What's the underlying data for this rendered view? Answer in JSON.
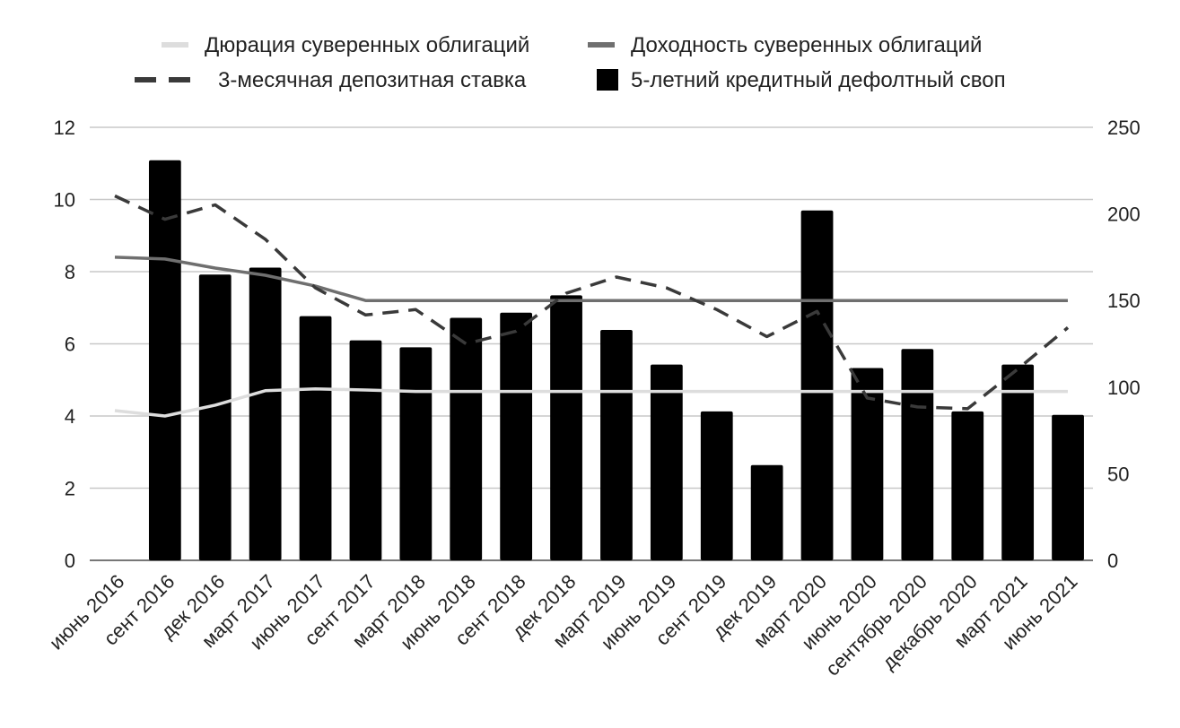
{
  "chart_data": {
    "type": "bar",
    "categories": [
      "июнь 2016",
      "сент 2016",
      "дек 2016",
      "март 2017",
      "июнь 2017",
      "сент 2017",
      "март 2018",
      "июнь 2018",
      "сент 2018",
      "дек 2018",
      "март 2019",
      "июнь 2019",
      "сент 2019",
      "дек 2019",
      "март 2020",
      "июнь 2020",
      "сентябрь 2020",
      "декабрь 2020",
      "март 2021",
      "июнь 2021"
    ],
    "left_axis": {
      "ticks": [
        "0",
        "2",
        "4",
        "6",
        "8",
        "10",
        "12"
      ],
      "ylim": [
        0,
        12
      ]
    },
    "right_axis": {
      "ticks": [
        "0",
        "50",
        "100",
        "150",
        "200",
        "250"
      ],
      "ylim": [
        0,
        250
      ]
    },
    "grid": true,
    "legend_position": "top",
    "series": [
      {
        "name": "Дюрация суверенных облигаций",
        "kind": "line",
        "axis": "left",
        "color": "#dddddd",
        "values": [
          4.15,
          4.0,
          4.3,
          4.7,
          4.75,
          4.72,
          4.68,
          4.68,
          4.68,
          4.68,
          4.68,
          4.68,
          4.68,
          4.68,
          4.68,
          4.68,
          4.68,
          4.68,
          4.68,
          4.68
        ]
      },
      {
        "name": "Доходность суверенных облигаций",
        "kind": "line",
        "axis": "left",
        "color": "#6f6f6f",
        "values": [
          8.4,
          8.35,
          8.1,
          7.9,
          7.6,
          7.2,
          7.2,
          7.2,
          7.2,
          7.2,
          7.2,
          7.2,
          7.2,
          7.2,
          7.2,
          7.2,
          7.2,
          7.2,
          7.2,
          7.2
        ]
      },
      {
        "name": "3-месячная депозитная ставка",
        "kind": "dashed-line",
        "axis": "left",
        "color": "#3a3a3a",
        "values": [
          10.1,
          9.45,
          9.85,
          8.9,
          7.55,
          6.8,
          6.95,
          6.0,
          6.35,
          7.4,
          7.85,
          7.55,
          6.95,
          6.2,
          6.9,
          4.5,
          4.25,
          4.2,
          5.3,
          6.45
        ]
      },
      {
        "name": "5-летний кредитный дефолтный своп",
        "kind": "bar",
        "axis": "right",
        "color": "#000000",
        "values": [
          null,
          231,
          165,
          169,
          141,
          127,
          123,
          140,
          143,
          153,
          133,
          113,
          86,
          55,
          202,
          111,
          122,
          86,
          113,
          84
        ]
      }
    ]
  }
}
